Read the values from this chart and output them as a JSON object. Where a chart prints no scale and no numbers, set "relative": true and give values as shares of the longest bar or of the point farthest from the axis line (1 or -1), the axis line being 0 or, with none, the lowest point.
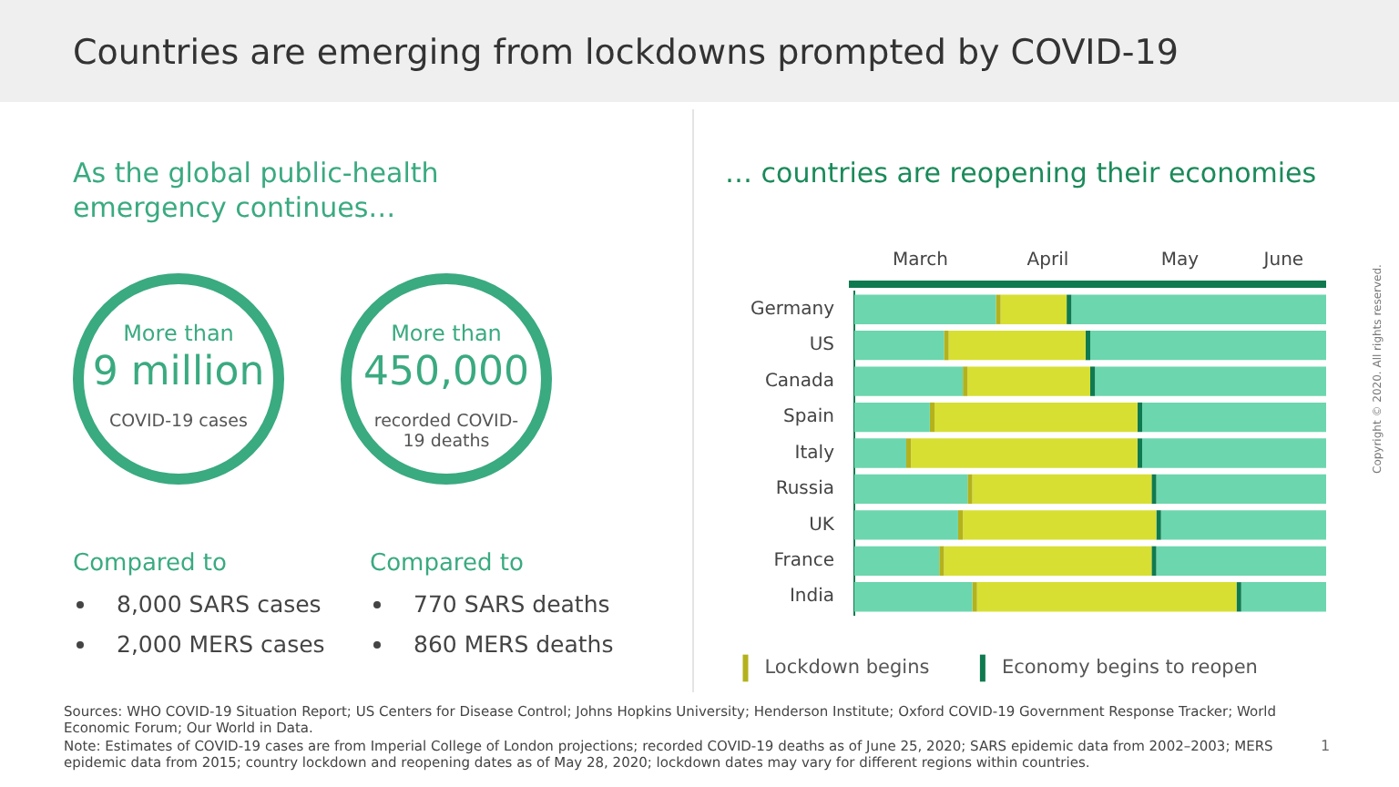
{
  "chart_data": [
    {
      "type": "other",
      "title": "Countries are emerging from lockdowns prompted by COVID-19",
      "subtitle": "As the global public-health emergency continues…",
      "annotations": [
        "More than",
        "9 million",
        "COVID-19 cases",
        "More than",
        "450,000",
        "recorded COVID-19 deaths",
        "Compared to",
        "8,000 SARS cases",
        "2,000 MERS cases",
        "Compared to",
        "770 SARS deaths",
        "860 MERS deaths"
      ]
    },
    {
      "type": "bar",
      "orientation": "horizontal",
      "title": "… countries are reopening their economies",
      "categories": [
        "Germany",
        "US",
        "Canada",
        "Spain",
        "Italy",
        "Russia",
        "UK",
        "France",
        "India"
      ],
      "relative": true,
      "stacked": true,
      "series": [
        {
          "type": "bar",
          "color": "#6cd6ae",
          "values": [
            0.3,
            0.19,
            0.23,
            0.16,
            0.11,
            0.24,
            0.22,
            0.18,
            0.25
          ]
        },
        {
          "type": "bar",
          "name": "Lockdown begins",
          "color": "#b3b21c",
          "values": [
            0.01,
            0.01,
            0.01,
            0.01,
            0.01,
            0.01,
            0.01,
            0.01,
            0.01
          ]
        },
        {
          "type": "bar",
          "color": "#d7df33",
          "values": [
            0.14,
            0.29,
            0.26,
            0.43,
            0.48,
            0.38,
            0.41,
            0.44,
            0.55
          ]
        },
        {
          "type": "bar",
          "name": "Economy begins to reopen",
          "color": "#0f7a4f",
          "values": [
            0.01,
            0.01,
            0.01,
            0.01,
            0.01,
            0.01,
            0.01,
            0.01,
            0.01
          ]
        },
        {
          "type": "bar",
          "color": "#6cd6ae",
          "values": [
            0.54,
            0.5,
            0.49,
            0.39,
            0.39,
            0.36,
            0.35,
            0.36,
            0.18
          ]
        }
      ],
      "legend": "bottom left",
      "annotations": [
        "March",
        "April",
        "May",
        "June",
        "Sources: WHO COVID-19 Situation Report; US Centers for Disease Control; Johns Hopkins University; Henderson Institute; Oxford COVID-19 Government Response Tracker; World Economic Forum; Our World in Data.",
        "Note: Estimates of COVID-19 cases are from Imperial College of London projections; recorded COVID-19 deaths as of June 25, 2020; SARS epidemic data from 2002–2003; MERS epidemic data from 2015; country lockdown and reopening dates as of May 28, 2020; lockdown dates may vary for different regions within countries.",
        "1",
        "Copyright © 2020. All rights reserved."
      ]
    }
  ]
}
